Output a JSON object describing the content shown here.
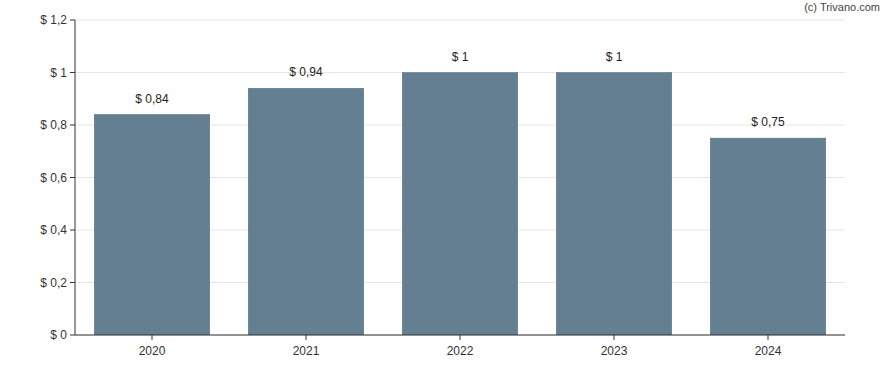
{
  "chart_data": {
    "type": "bar",
    "annotation": "(c) Trivano.com",
    "categories": [
      "2020",
      "2021",
      "2022",
      "2023",
      "2024"
    ],
    "values": [
      0.84,
      0.94,
      1,
      1,
      0.75
    ],
    "value_labels": [
      "$ 0,84",
      "$ 0,94",
      "$ 1",
      "$ 1",
      "$ 0,75"
    ],
    "color": "#647f91",
    "ylim": [
      0,
      1.2
    ],
    "yticks": [
      {
        "value": 0,
        "label": "$ 0"
      },
      {
        "value": 0.2,
        "label": "$ 0,2"
      },
      {
        "value": 0.4,
        "label": "$ 0,4"
      },
      {
        "value": 0.6,
        "label": "$ 0,6"
      },
      {
        "value": 0.8,
        "label": "$ 0,8"
      },
      {
        "value": 1,
        "label": "$ 1"
      },
      {
        "value": 1.2,
        "label": "$ 1,2"
      }
    ],
    "grid": true,
    "data_labels": true
  }
}
